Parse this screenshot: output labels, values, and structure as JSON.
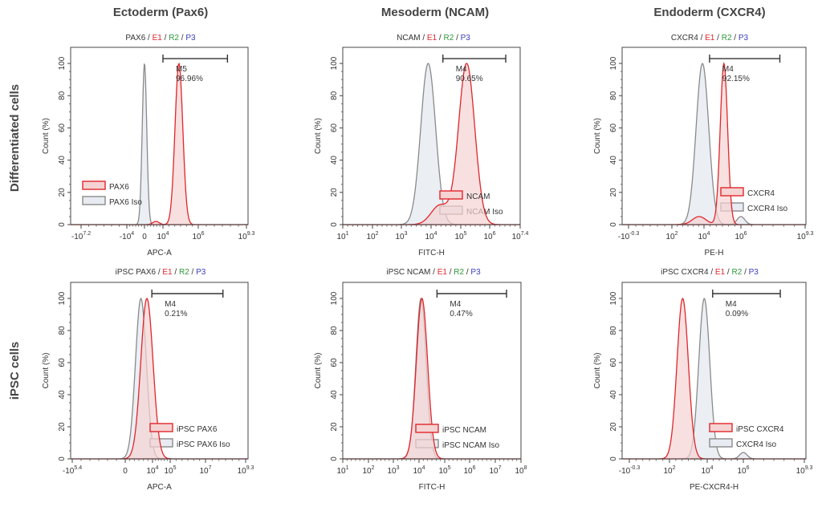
{
  "column_headers": [
    "Ectoderm (Pax6)",
    "Mesoderm (NCAM)",
    "Endoderm (CXCR4)"
  ],
  "row_labels": [
    "Differentiated cells",
    "iPSC cells"
  ],
  "colors": {
    "sample": "#e0262b",
    "sample_fill": "#f5d3d3",
    "isotype": "#8a8a8a",
    "isotype_fill": "#e8ecf2",
    "E1": "#e0262b",
    "R2": "#2e9a3a",
    "P3": "#3a3fbf",
    "marker": "#333333"
  },
  "chart_data": [
    {
      "type": "histogram",
      "title_parts": [
        {
          "text": "PAX6",
          "color": "#333"
        },
        {
          "text": " / ",
          "color": "#333"
        },
        {
          "text": "E1",
          "color": "#e0262b"
        },
        {
          "text": " / ",
          "color": "#333"
        },
        {
          "text": "R2",
          "color": "#2e9a3a"
        },
        {
          "text": " / ",
          "color": "#333"
        },
        {
          "text": "P3",
          "color": "#3a3fbf"
        }
      ],
      "xlabel": "APC-A",
      "ylabel": "Count (%)",
      "ylim": [
        0,
        110
      ],
      "yticks": [
        "0",
        "20",
        "40",
        "60",
        "80",
        "100"
      ],
      "xticks": [
        {
          "base": "-10",
          "exp": "7.2",
          "value": -15848932
        },
        {
          "base": "-10",
          "exp": "4",
          "value": -10000
        },
        {
          "base": "0",
          "exp": "",
          "value": 0
        },
        {
          "base": "10",
          "exp": "4",
          "value": 10000
        },
        {
          "base": "10",
          "exp": "6",
          "value": 1000000
        },
        {
          "base": "10",
          "exp": "9.3",
          "value": 1995262315
        }
      ],
      "marker": {
        "name": "M5",
        "percent": "96.96%",
        "range": [
          10000,
          100000000
        ]
      },
      "series": [
        {
          "name": "PAX6",
          "kind": "sample",
          "peaks": [
            {
              "value": 80000,
              "height": 100,
              "spread_decades": 0.22
            },
            {
              "value": 300,
              "height": 2,
              "spread_decades": 0.5
            }
          ]
        },
        {
          "name": "PAX6 Iso",
          "kind": "isotype",
          "peaks": [
            {
              "value": 0,
              "height": 100,
              "spread_decades": 0.35
            }
          ]
        }
      ]
    },
    {
      "type": "histogram",
      "title_parts": [
        {
          "text": "NCAM",
          "color": "#333"
        },
        {
          "text": " / ",
          "color": "#333"
        },
        {
          "text": "E1",
          "color": "#e0262b"
        },
        {
          "text": " / ",
          "color": "#333"
        },
        {
          "text": "R2",
          "color": "#2e9a3a"
        },
        {
          "text": " / ",
          "color": "#333"
        },
        {
          "text": "P3",
          "color": "#3a3fbf"
        }
      ],
      "xlabel": "FITC-H",
      "ylabel": "Count (%)",
      "ylim": [
        0,
        110
      ],
      "yticks": [
        "0",
        "20",
        "40",
        "60",
        "80",
        "100"
      ],
      "xticks": [
        {
          "base": "10",
          "exp": "1",
          "value": 10
        },
        {
          "base": "10",
          "exp": "2",
          "value": 100
        },
        {
          "base": "10",
          "exp": "3",
          "value": 1000
        },
        {
          "base": "10",
          "exp": "4",
          "value": 10000
        },
        {
          "base": "10",
          "exp": "5",
          "value": 100000
        },
        {
          "base": "10",
          "exp": "6",
          "value": 1000000
        },
        {
          "base": "10",
          "exp": "7.4",
          "value": 25118864
        }
      ],
      "marker": {
        "name": "M4",
        "percent": "90.65%",
        "range": [
          25000,
          10000000
        ]
      },
      "series": [
        {
          "name": "NCAM",
          "kind": "sample",
          "peaks": [
            {
              "value": 160000,
              "height": 100,
              "spread_decades": 0.28
            },
            {
              "value": 20000,
              "height": 12,
              "spread_decades": 0.3
            }
          ]
        },
        {
          "name": "NCAM Iso",
          "kind": "isotype",
          "peaks": [
            {
              "value": 8000,
              "height": 100,
              "spread_decades": 0.25
            }
          ]
        }
      ]
    },
    {
      "type": "histogram",
      "title_parts": [
        {
          "text": "CXCR4",
          "color": "#333"
        },
        {
          "text": " / ",
          "color": "#333"
        },
        {
          "text": "E1",
          "color": "#e0262b"
        },
        {
          "text": " / ",
          "color": "#333"
        },
        {
          "text": "R2",
          "color": "#2e9a3a"
        },
        {
          "text": " / ",
          "color": "#333"
        },
        {
          "text": "P3",
          "color": "#3a3fbf"
        }
      ],
      "xlabel": "PE-H",
      "ylabel": "Count (%)",
      "ylim": [
        0,
        110
      ],
      "yticks": [
        "0",
        "20",
        "40",
        "60",
        "80",
        "100"
      ],
      "xticks": [
        {
          "base": "-10",
          "exp": "-0.3",
          "value": -0.5
        },
        {
          "base": "10",
          "exp": "2",
          "value": 100
        },
        {
          "base": "10",
          "exp": "4",
          "value": 10000
        },
        {
          "base": "10",
          "exp": "6",
          "value": 1000000
        },
        {
          "base": "10",
          "exp": "9.3",
          "value": 1995262315
        }
      ],
      "marker": {
        "name": "M4",
        "percent": "92.15%",
        "range": [
          20000,
          100000000
        ]
      },
      "series": [
        {
          "name": "CXCR4",
          "kind": "sample",
          "peaks": [
            {
              "value": 120000,
              "height": 100,
              "spread_decades": 0.2
            },
            {
              "value": 5000,
              "height": 5,
              "spread_decades": 0.4
            }
          ]
        },
        {
          "name": "CXCR4 Iso",
          "kind": "isotype",
          "peaks": [
            {
              "value": 8000,
              "height": 100,
              "spread_decades": 0.35
            },
            {
              "value": 1000000,
              "height": 5,
              "spread_decades": 0.2
            }
          ]
        }
      ]
    },
    {
      "type": "histogram",
      "title_parts": [
        {
          "text": "iPSC PAX6",
          "color": "#333"
        },
        {
          "text": " / ",
          "color": "#333"
        },
        {
          "text": "E1",
          "color": "#e0262b"
        },
        {
          "text": " / ",
          "color": "#333"
        },
        {
          "text": "R2",
          "color": "#2e9a3a"
        },
        {
          "text": " / ",
          "color": "#333"
        },
        {
          "text": "P3",
          "color": "#3a3fbf"
        }
      ],
      "xlabel": "APC-A",
      "ylabel": "Count (%)",
      "ylim": [
        0,
        110
      ],
      "yticks": [
        "0",
        "20",
        "40",
        "60",
        "80",
        "100"
      ],
      "xticks": [
        {
          "base": "-10",
          "exp": "5.4",
          "value": -251189
        },
        {
          "base": "0",
          "exp": "",
          "value": 0
        },
        {
          "base": "10",
          "exp": "4",
          "value": 10000
        },
        {
          "base": "10",
          "exp": "5",
          "value": 100000
        },
        {
          "base": "10",
          "exp": "7",
          "value": 10000000
        },
        {
          "base": "10",
          "exp": "9.3",
          "value": 1995262315
        }
      ],
      "marker": {
        "name": "M4",
        "percent": "0.21%",
        "range": [
          8000,
          100000000
        ]
      },
      "series": [
        {
          "name": "iPSC PAX6",
          "kind": "sample",
          "peaks": [
            {
              "value": 1500,
              "height": 100,
              "spread_decades": 0.9
            }
          ]
        },
        {
          "name": "iPSC PAX6 Iso",
          "kind": "isotype",
          "peaks": [
            {
              "value": 200,
              "height": 100,
              "spread_decades": 0.8
            }
          ]
        }
      ]
    },
    {
      "type": "histogram",
      "title_parts": [
        {
          "text": "iPSC NCAM",
          "color": "#333"
        },
        {
          "text": " / ",
          "color": "#333"
        },
        {
          "text": "E1",
          "color": "#e0262b"
        },
        {
          "text": " / ",
          "color": "#333"
        },
        {
          "text": "R2",
          "color": "#2e9a3a"
        },
        {
          "text": " / ",
          "color": "#333"
        },
        {
          "text": "P3",
          "color": "#3a3fbf"
        }
      ],
      "xlabel": "FITC-H",
      "ylabel": "Count (%)",
      "ylim": [
        0,
        110
      ],
      "yticks": [
        "0",
        "20",
        "40",
        "60",
        "80",
        "100"
      ],
      "xticks": [
        {
          "base": "10",
          "exp": "1",
          "value": 10
        },
        {
          "base": "10",
          "exp": "2",
          "value": 100
        },
        {
          "base": "10",
          "exp": "3",
          "value": 1000
        },
        {
          "base": "10",
          "exp": "4",
          "value": 10000
        },
        {
          "base": "10",
          "exp": "5",
          "value": 100000
        },
        {
          "base": "10",
          "exp": "6",
          "value": 1000000
        },
        {
          "base": "10",
          "exp": "7",
          "value": 10000000
        },
        {
          "base": "10",
          "exp": "8",
          "value": 100000000
        }
      ],
      "marker": {
        "name": "M4",
        "percent": "0.47%",
        "range": [
          50000,
          50000000
        ]
      },
      "series": [
        {
          "name": "iPSC NCAM",
          "kind": "sample",
          "peaks": [
            {
              "value": 13000,
              "height": 100,
              "spread_decades": 0.22
            }
          ]
        },
        {
          "name": "iPSC NCAM Iso",
          "kind": "isotype",
          "peaks": [
            {
              "value": 12000,
              "height": 100,
              "spread_decades": 0.2
            }
          ]
        }
      ]
    },
    {
      "type": "histogram",
      "title_parts": [
        {
          "text": "iPSC CXCR4",
          "color": "#333"
        },
        {
          "text": " / ",
          "color": "#333"
        },
        {
          "text": "E1",
          "color": "#e0262b"
        },
        {
          "text": " / ",
          "color": "#333"
        },
        {
          "text": "R2",
          "color": "#2e9a3a"
        },
        {
          "text": " / ",
          "color": "#333"
        },
        {
          "text": "P3",
          "color": "#3a3fbf"
        }
      ],
      "xlabel": "PE-CXCR4-H",
      "ylabel": "Count (%)",
      "ylim": [
        0,
        110
      ],
      "yticks": [
        "0",
        "20",
        "40",
        "60",
        "80",
        "100"
      ],
      "xticks": [
        {
          "base": "-10",
          "exp": "-0.3",
          "value": -0.5
        },
        {
          "base": "10",
          "exp": "2",
          "value": 100
        },
        {
          "base": "10",
          "exp": "4",
          "value": 10000
        },
        {
          "base": "10",
          "exp": "6",
          "value": 1000000
        },
        {
          "base": "10",
          "exp": "9.3",
          "value": 1995262315
        }
      ],
      "marker": {
        "name": "M4",
        "percent": "0.09%",
        "range": [
          20000,
          100000000
        ]
      },
      "series": [
        {
          "name": "iPSC CXCR4",
          "kind": "sample",
          "peaks": [
            {
              "value": 500,
              "height": 100,
              "spread_decades": 0.3
            }
          ]
        },
        {
          "name": "CXCR4 Iso",
          "kind": "isotype",
          "peaks": [
            {
              "value": 7000,
              "height": 100,
              "spread_decades": 0.3
            },
            {
              "value": 1000000,
              "height": 4,
              "spread_decades": 0.2
            }
          ]
        }
      ]
    }
  ]
}
